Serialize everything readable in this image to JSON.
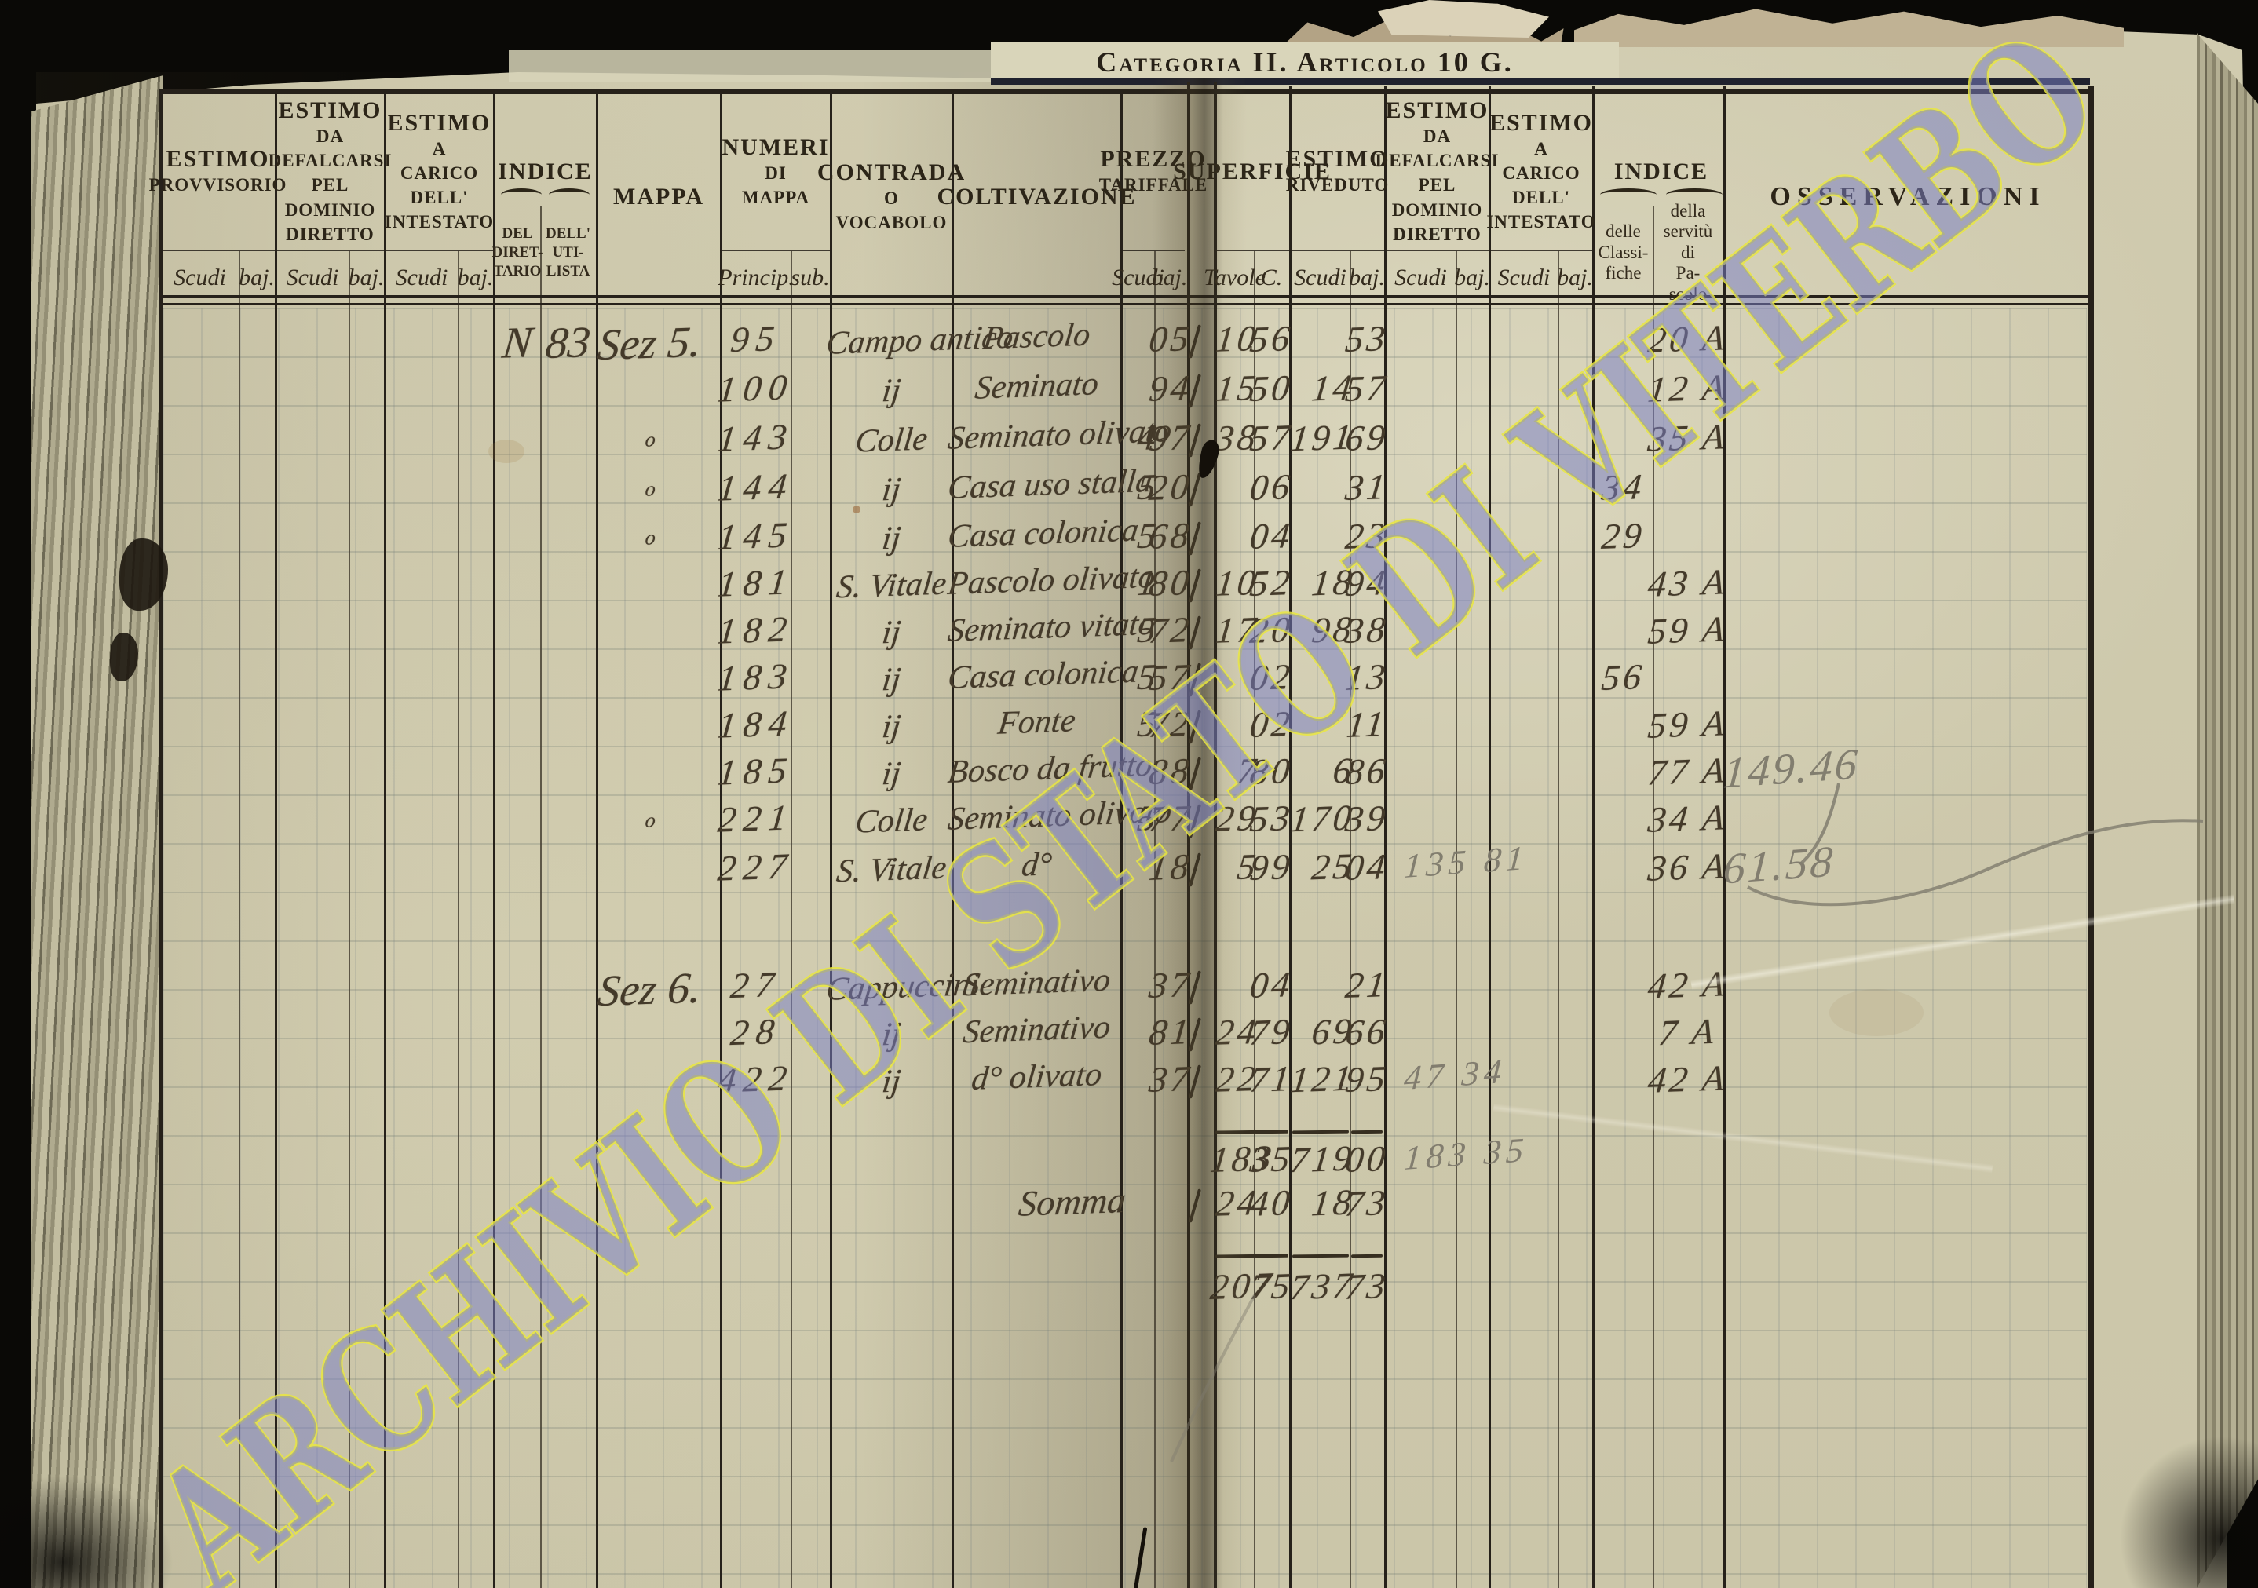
{
  "page": {
    "watermark": "ARCHIVIO DI STATO DI VITERBO",
    "category_header": "Categoria II. Articolo 10 G."
  },
  "table": {
    "column_groups": [
      {
        "id": "estimo-provvisorio",
        "lines": [
          "ESTIMO",
          "PROVVISORIO"
        ],
        "subs": [
          "Scudi",
          "baj."
        ]
      },
      {
        "id": "estimo-da-defalcarsi-sx",
        "lines": [
          "ESTIMO",
          "DA",
          "DEFALCARSI",
          "PEL DOMINIO",
          "DIRETTO"
        ],
        "subs": [
          "Scudi",
          "baj."
        ]
      },
      {
        "id": "estimo-a-carico-sx",
        "lines": [
          "ESTIMO",
          "A",
          "CARICO",
          "DELL'",
          "INTESTATO"
        ],
        "subs": [
          "Scudi",
          "baj."
        ]
      },
      {
        "id": "indice-sx",
        "lines": [
          "INDICE"
        ],
        "brace": true,
        "subs_caps": [
          "DEL\nDIRET-\nTARIO",
          "DELL'\nUTI-\nLISTA"
        ]
      },
      {
        "id": "mappa",
        "lines": [
          "MAPPA"
        ]
      },
      {
        "id": "numeri-di-mappa",
        "lines": [
          "NUMERI",
          "DI",
          "MAPPA"
        ],
        "subs": [
          "Princip.",
          "sub."
        ]
      },
      {
        "id": "contrada-o-vocabolo",
        "lines": [
          "CONTRADA",
          "O",
          "VOCABOLO"
        ]
      },
      {
        "id": "coltivazione",
        "lines": [
          "COLTIVAZIONE"
        ]
      },
      {
        "id": "prezzo-tariffale",
        "lines": [
          "PREZZO",
          "TARIFFALE"
        ],
        "subs": [
          "Scudi",
          "baj."
        ]
      },
      {
        "id": "superficie",
        "lines": [
          "SUPERFICIE"
        ],
        "subs": [
          "Tavole",
          "C."
        ]
      },
      {
        "id": "estimo-riveduto",
        "lines": [
          "ESTIMO",
          "RIVEDUTO"
        ],
        "subs": [
          "Scudi",
          "baj."
        ]
      },
      {
        "id": "estimo-da-defalcarsi-dx",
        "lines": [
          "ESTIMO",
          "DA",
          "DEFALCARSI",
          "PEL DOMINIO",
          "DIRETTO"
        ],
        "subs": [
          "Scudi",
          "baj."
        ]
      },
      {
        "id": "estimo-a-carico-dx",
        "lines": [
          "ESTIMO",
          "A",
          "CARICO",
          "DELL'",
          "INTESTATO"
        ],
        "subs": [
          "Scudi",
          "baj."
        ]
      },
      {
        "id": "indice-dx",
        "lines": [
          "INDICE"
        ],
        "brace": true,
        "subs_low": [
          "delle\nClassi-\nfiche",
          "della\nservitù\ndi\nPa-\nscolo"
        ]
      },
      {
        "id": "osservazioni",
        "lines": [
          "OSSERVAZIONI"
        ]
      }
    ],
    "rows": [
      {
        "ind_d": "N",
        "ind_u": "83",
        "mappa": "Sez 5.",
        "princ": "95",
        "contrada": "Campo antico",
        "colt": "Pascolo",
        "pz_b": "05",
        "tick": true,
        "sup_t": "10",
        "sup_c": "56",
        "rv_b": "53",
        "pa": "20 A"
      },
      {
        "princ": "100",
        "contrada": "ij",
        "colt": "Seminato",
        "pz_b": "94",
        "tick": true,
        "sup_t": "15",
        "sup_c": "50",
        "rv_s": "14",
        "rv_b": "57",
        "pa": "12 A"
      },
      {
        "mark": "o",
        "princ": "143",
        "contrada": "Colle",
        "colt": "Seminato olivato",
        "pz_s": "4",
        "pz_b": "97",
        "tick": true,
        "sup_t": "38",
        "sup_c": "57",
        "rv_s": "191",
        "rv_b": "69",
        "pa": "35 A"
      },
      {
        "mark": "o",
        "princ": "144",
        "contrada": "ij",
        "colt": "Casa uso stalla",
        "pz_s": "5",
        "pz_b": "20",
        "tick": true,
        "sup_c": "06",
        "rv_b": "31",
        "cl": "34"
      },
      {
        "mark": "o",
        "princ": "145",
        "contrada": "ij",
        "colt": "Casa colonica",
        "pz_s": "5",
        "pz_b": "68",
        "tick": true,
        "sup_c": "04",
        "rv_b": "23",
        "cl": "29"
      },
      {
        "princ": "181",
        "contrada": "S. Vitale",
        "colt": "Pascolo olivato",
        "pz_s": "1",
        "pz_b": "80",
        "tick": true,
        "sup_t": "10",
        "sup_c": "52",
        "rv_s": "18",
        "rv_b": "94",
        "pa": "43 A"
      },
      {
        "princ": "182",
        "contrada": "ij",
        "colt": "Seminato vitato",
        "pz_s": "5",
        "pz_b": "72",
        "tick": true,
        "sup_t": "17",
        "sup_c": "20",
        "rv_s": "98",
        "rv_b": "38",
        "pa": "59 A"
      },
      {
        "princ": "183",
        "contrada": "ij",
        "colt": "Casa colonica",
        "pz_s": "5",
        "pz_b": "57",
        "tick": true,
        "sup_c": "02",
        "rv_b": "13",
        "cl": "56"
      },
      {
        "princ": "184",
        "contrada": "ij",
        "colt": "Fonte",
        "pz_s": "5",
        "pz_b": "72",
        "tick": true,
        "sup_c": "02",
        "rv_b": "11",
        "pa": "59 A"
      },
      {
        "princ": "185",
        "contrada": "ij",
        "colt": "Bosco da frutto",
        "pz_b": "88",
        "tick": true,
        "sup_t": "7",
        "sup_c": "80",
        "rv_s": "6",
        "rv_b": "86",
        "pa": "77 A",
        "oss_pencil": "149.46"
      },
      {
        "mark": "o",
        "princ": "221",
        "contrada": "Colle",
        "colt": "Seminato olivato",
        "pz_s": "5",
        "pz_b": "77",
        "tick": true,
        "sup_t": "29",
        "sup_c": "53",
        "rv_s": "170",
        "rv_b": "39",
        "pa": "34 A"
      },
      {
        "princ": "227",
        "contrada": "S. Vitale",
        "colt": "d°",
        "pz_b": "18",
        "tick": true,
        "sup_t": "5",
        "sup_c": "99",
        "rv_s": "25",
        "rv_b": "04",
        "df_pencil": "135 81",
        "pa": "36 A",
        "oss_pencil": "61.58"
      },
      {
        "mappa": "Sez 6.",
        "princ": "27",
        "contrada": "Cappuccini",
        "colt": "Seminativo",
        "pz_b": "37",
        "tick": true,
        "sup_c": "04",
        "rv_b": "21",
        "pa": "42 A"
      },
      {
        "princ": "28",
        "contrada": "ij",
        "colt": "Seminativo",
        "pz_b": "81",
        "tick": true,
        "sup_t": "24",
        "sup_c": "79",
        "rv_s": "69",
        "rv_b": "66",
        "pa": "7 A"
      },
      {
        "princ": "422",
        "contrada": "ij",
        "colt": "d° olivato",
        "pz_b": "37",
        "tick": true,
        "sup_t": "22",
        "sup_c": "71",
        "rv_s": "121",
        "rv_b": "95",
        "df_pencil": "47 34",
        "pa": "42 A"
      }
    ],
    "totals": {
      "somma_label": "Somma",
      "subtotal": {
        "sup_t": "183",
        "sup_c": "35",
        "rv_s": "719",
        "rv_b": "00",
        "df_pencil": "183 35"
      },
      "somma": {
        "sup_t": "24",
        "sup_c": "40",
        "rv_s": "18",
        "rv_b": "73",
        "tick": true
      },
      "grand": {
        "sup_t": "207",
        "sup_c": "75",
        "rv_s": "737",
        "rv_b": "73"
      }
    }
  },
  "colors": {
    "paper": "#d0cbaf",
    "ink": "#443a2a",
    "printed": "#2c2518",
    "pencil": "#7d796c",
    "watermark_fill": "#787ec6",
    "watermark_outline": "#e9e63f"
  }
}
